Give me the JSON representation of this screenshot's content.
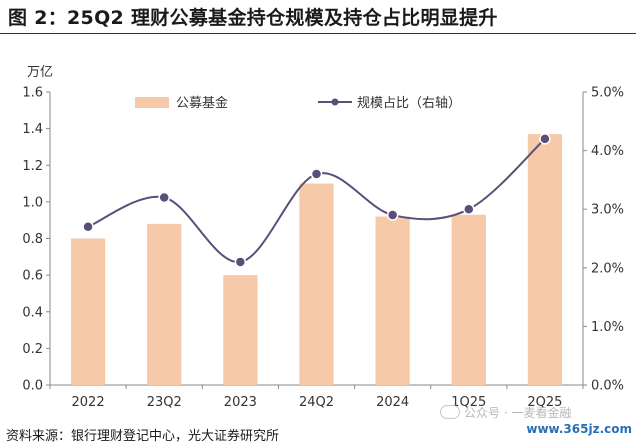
{
  "title": "图 2：25Q2 理财公募基金持仓规模及持仓占比明显提升",
  "source": "资料来源：银行理财登记中心，光大证券研究所",
  "watermark": "公众号 · 一麦看金融",
  "site": "www.365jz.com",
  "chart_data": {
    "type": "bar",
    "categories": [
      "2022",
      "23Q2",
      "2023",
      "24Q2",
      "2024",
      "1Q25",
      "2Q25"
    ],
    "series": [
      {
        "name": "公募基金",
        "type": "bar",
        "axis": "left",
        "color": "#f6c9a8",
        "values": [
          0.8,
          0.88,
          0.6,
          1.1,
          0.92,
          0.93,
          1.37
        ]
      },
      {
        "name": "规模占比（右轴）",
        "type": "line",
        "axis": "right",
        "color": "#5b4f7a",
        "values": [
          2.7,
          3.2,
          2.1,
          3.6,
          2.9,
          3.0,
          4.2
        ]
      }
    ],
    "y_unit": "万亿",
    "ylim": [
      0,
      1.6
    ],
    "y_ticks": [
      "0.0",
      "0.2",
      "0.4",
      "0.6",
      "0.8",
      "1.0",
      "1.2",
      "1.4",
      "1.6"
    ],
    "y2lim": [
      0,
      5.0
    ],
    "y2_ticks": [
      "0.0%",
      "1.0%",
      "2.0%",
      "3.0%",
      "4.0%",
      "5.0%"
    ],
    "grid": false,
    "legend_position": "top"
  }
}
